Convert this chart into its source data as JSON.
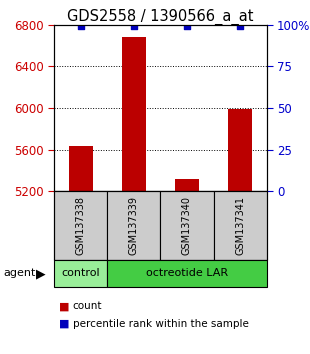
{
  "title": "GDS2558 / 1390566_a_at",
  "samples": [
    "GSM137338",
    "GSM137339",
    "GSM137340",
    "GSM137341"
  ],
  "counts": [
    5630,
    6680,
    5320,
    5990
  ],
  "percentile_ranks": [
    99,
    99,
    99,
    99
  ],
  "ylim_left": [
    5200,
    6800
  ],
  "yticks_left": [
    5200,
    5600,
    6000,
    6400,
    6800
  ],
  "ylim_right": [
    0,
    100
  ],
  "yticks_right": [
    0,
    25,
    50,
    75,
    100
  ],
  "ytick_right_labels": [
    "0",
    "25",
    "50",
    "75",
    "100%"
  ],
  "bar_color": "#bb0000",
  "dot_color": "#0000bb",
  "bar_width": 0.45,
  "control_color": "#99ee99",
  "octreotide_color": "#44cc44",
  "sample_box_color": "#cccccc",
  "agent_label": "agent",
  "legend_count_label": "count",
  "legend_pct_label": "percentile rank within the sample",
  "bg_color": "#ffffff",
  "plot_bg_color": "#ffffff",
  "left_tick_color": "#cc0000",
  "right_tick_color": "#0000cc",
  "title_fontsize": 10.5,
  "tick_fontsize": 8.5,
  "sample_fontsize": 7,
  "group_fontsize": 8,
  "legend_fontsize": 7.5
}
